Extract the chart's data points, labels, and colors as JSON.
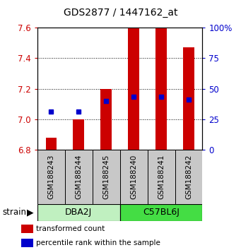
{
  "title": "GDS2877 / 1447162_at",
  "samples": [
    "GSM188243",
    "GSM188244",
    "GSM188245",
    "GSM188240",
    "GSM188241",
    "GSM188242"
  ],
  "red_values": [
    6.88,
    7.0,
    7.2,
    7.6,
    7.6,
    7.47
  ],
  "blue_values": [
    7.05,
    7.05,
    7.12,
    7.15,
    7.15,
    7.13
  ],
  "baseline": 6.8,
  "ylim_left": [
    6.8,
    7.6
  ],
  "ylim_right": [
    0,
    100
  ],
  "yticks_left": [
    6.8,
    7.0,
    7.2,
    7.4,
    7.6
  ],
  "yticks_right": [
    0,
    25,
    50,
    75,
    100
  ],
  "bar_color": "#cc0000",
  "blue_color": "#0000cc",
  "left_tick_color": "#cc0000",
  "right_tick_color": "#0000cc",
  "plot_bg": "#ffffff",
  "bar_width": 0.4,
  "blue_marker_size": 5,
  "legend_red": "transformed count",
  "legend_blue": "percentile rank within the sample",
  "strain_label": "strain",
  "sample_box_color": "#c8c8c8",
  "dba2j_color": "#c0f0c0",
  "c57bl6j_color": "#44dd44",
  "right_tick_labels": [
    "0",
    "25",
    "50",
    "75",
    "100%"
  ],
  "group_labels": [
    "DBA2J",
    "C57BL6J"
  ]
}
